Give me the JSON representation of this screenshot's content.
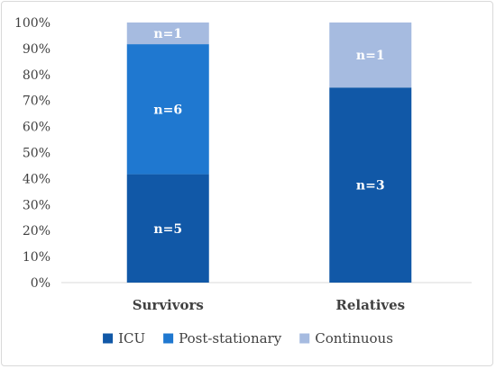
{
  "chart_data": {
    "type": "bar",
    "stacked": true,
    "normalized": true,
    "categories": [
      "Survivors",
      "Relatives"
    ],
    "series": [
      {
        "name": "ICU",
        "values": [
          5,
          3
        ],
        "labels": [
          "n=5",
          "n=3"
        ],
        "color": "#1158a7"
      },
      {
        "name": "Post-stationary",
        "values": [
          6,
          0
        ],
        "labels": [
          "n=6",
          ""
        ],
        "color": "#1f78d0"
      },
      {
        "name": "Continuous",
        "values": [
          1,
          1
        ],
        "labels": [
          "n=1",
          "n=1"
        ],
        "color": "#a6bbe0"
      }
    ],
    "ylim": [
      0,
      100
    ],
    "yticks": [
      "0%",
      "10%",
      "20%",
      "30%",
      "40%",
      "50%",
      "60%",
      "70%",
      "80%",
      "90%",
      "100%"
    ],
    "title": "",
    "xlabel": "",
    "ylabel": "",
    "grid": false,
    "legend": "bottom"
  }
}
